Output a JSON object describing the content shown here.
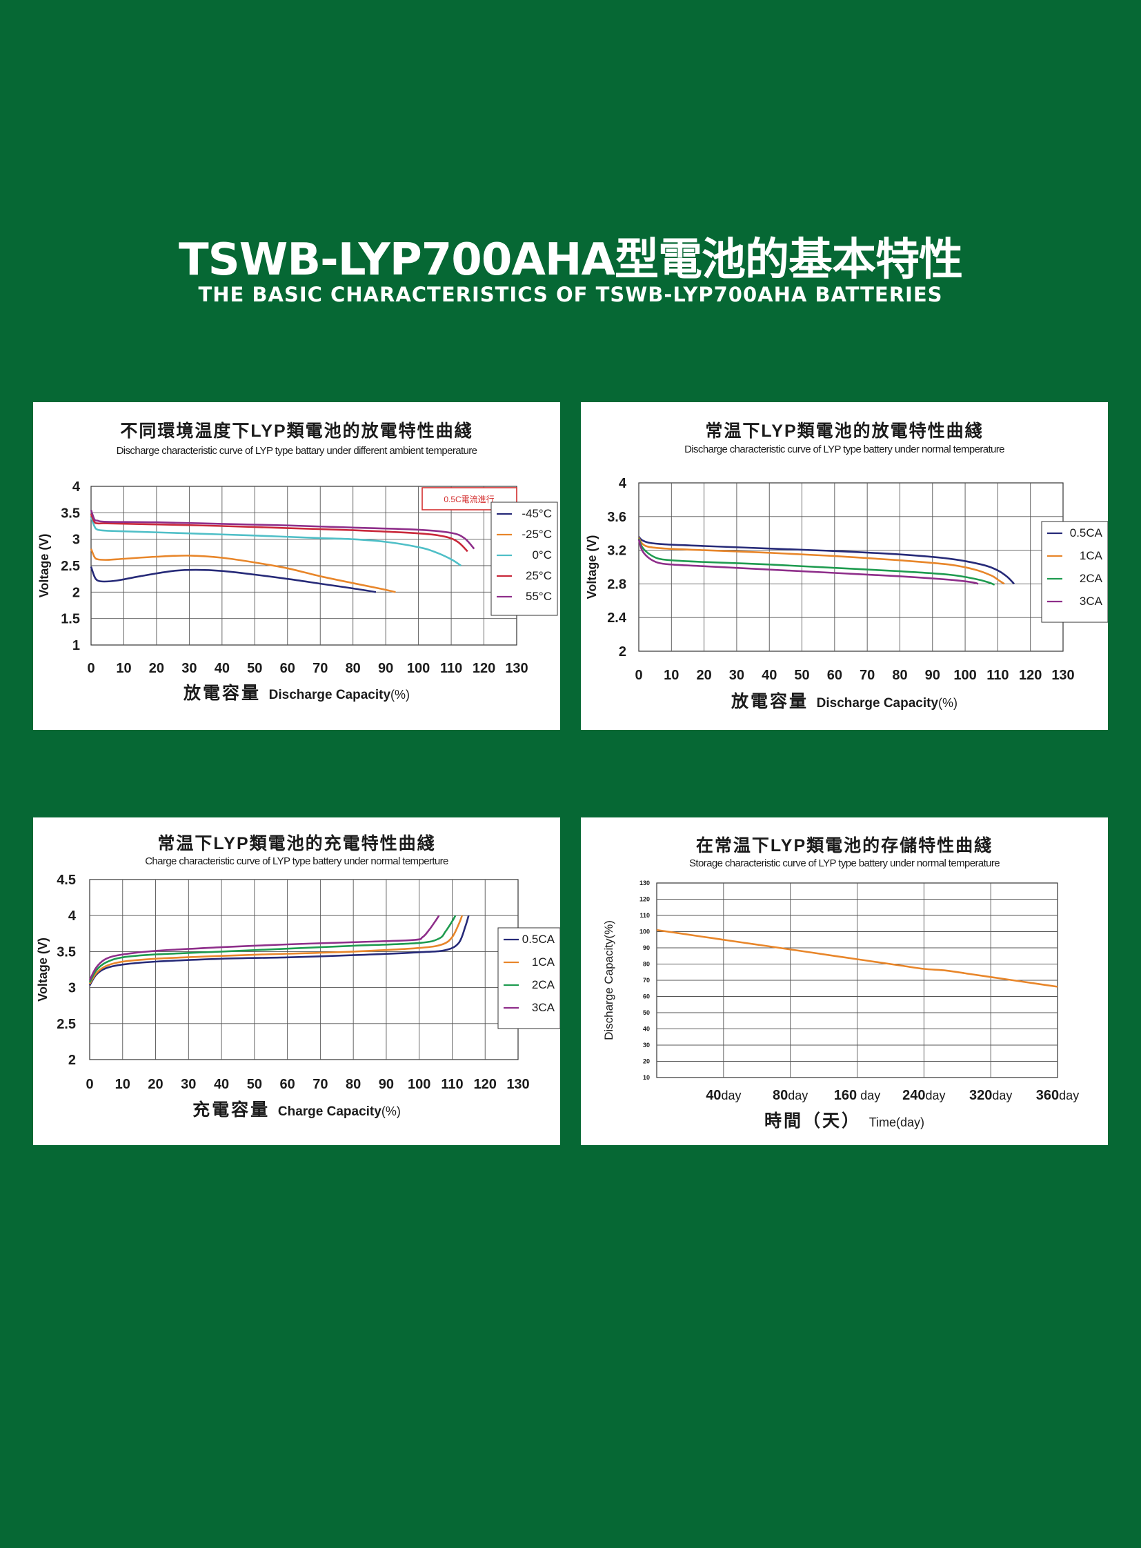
{
  "header": {
    "title": "TSWB-LYP700AHA型電池的基本特性",
    "subtitle": "THE BASIC CHARACTERISTICS OF TSWB-LYP700AHA BATTERIES"
  },
  "colors": {
    "background": "#066834",
    "navy": "#262a78",
    "orange": "#e8862a",
    "teal": "#4fbfc7",
    "red": "#c9283a",
    "purple": "#8e2e8a",
    "green": "#1e9b4f"
  },
  "chart_data": [
    {
      "type": "line",
      "title": "不同環境温度下LYP類電池的放電特性曲綫",
      "subtitle": "Discharge characteristic curve of LYP type battary under different ambient temperature",
      "xlabel_cn": "放電容量",
      "xlabel_en": "Discharge Capacity",
      "xlabel_unit": "(%)",
      "ylabel": "Voltage (V)",
      "xlim": [
        0,
        130
      ],
      "ylim": [
        1,
        4
      ],
      "x_ticks": [
        "0",
        "10",
        "20",
        "30",
        "40",
        "50",
        "60",
        "70",
        "80",
        "90",
        "100",
        "110",
        "120",
        "130"
      ],
      "y_ticks": [
        "1",
        "1.5",
        "2",
        "2.5",
        "3",
        "3.5",
        "4"
      ],
      "annotation": "0.5C電流進行",
      "grid": true,
      "legend_position": "right",
      "series": [
        {
          "name": "-45°C",
          "color": "#262a78",
          "x": [
            0,
            1,
            2,
            4,
            8,
            15,
            25,
            32,
            40,
            50,
            60,
            70,
            80,
            87
          ],
          "y": [
            2.48,
            2.3,
            2.22,
            2.2,
            2.22,
            2.3,
            2.4,
            2.42,
            2.4,
            2.33,
            2.25,
            2.16,
            2.07,
            2.0
          ]
        },
        {
          "name": "-25°C",
          "color": "#e8862a",
          "x": [
            0,
            1,
            2,
            5,
            10,
            20,
            30,
            40,
            50,
            60,
            70,
            80,
            88,
            93
          ],
          "y": [
            2.82,
            2.67,
            2.62,
            2.61,
            2.63,
            2.67,
            2.69,
            2.65,
            2.56,
            2.45,
            2.3,
            2.17,
            2.07,
            2.0
          ]
        },
        {
          "name": "0°C",
          "color": "#4fbfc7",
          "x": [
            0,
            1,
            2,
            5,
            10,
            30,
            50,
            70,
            80,
            90,
            100,
            105,
            110,
            113
          ],
          "y": [
            3.42,
            3.25,
            3.18,
            3.16,
            3.15,
            3.11,
            3.07,
            3.02,
            3.0,
            2.95,
            2.85,
            2.76,
            2.62,
            2.5
          ]
        },
        {
          "name": "25°C",
          "color": "#c9283a",
          "x": [
            0,
            1,
            2,
            5,
            20,
            40,
            60,
            80,
            100,
            108,
            112,
            115
          ],
          "y": [
            3.48,
            3.33,
            3.3,
            3.3,
            3.28,
            3.25,
            3.21,
            3.17,
            3.11,
            3.05,
            2.95,
            2.77
          ]
        },
        {
          "name": "55°C",
          "color": "#8e2e8a",
          "x": [
            0,
            1,
            2,
            5,
            20,
            40,
            60,
            80,
            100,
            110,
            114,
            117
          ],
          "y": [
            3.55,
            3.38,
            3.35,
            3.33,
            3.32,
            3.29,
            3.26,
            3.22,
            3.18,
            3.12,
            3.02,
            2.82
          ]
        }
      ]
    },
    {
      "type": "line",
      "title": "常温下LYP類電池的放電特性曲綫",
      "subtitle": "Discharge characteristic curve of LYP  type battery under normal temperature",
      "xlabel_cn": "放電容量",
      "xlabel_en": "Discharge Capacity",
      "xlabel_unit": "(%)",
      "ylabel": "Voltage (V)",
      "xlim": [
        0,
        130
      ],
      "ylim": [
        2,
        4
      ],
      "x_ticks": [
        "0",
        "10",
        "20",
        "30",
        "40",
        "50",
        "60",
        "70",
        "80",
        "90",
        "100",
        "110",
        "120",
        "130"
      ],
      "y_ticks": [
        "2",
        "2.4",
        "2.8",
        "3.2",
        "3.6",
        "4"
      ],
      "grid": true,
      "legend_position": "right",
      "series": [
        {
          "name": "0.5CA",
          "color": "#262a78",
          "x": [
            0,
            1,
            3,
            8,
            20,
            40,
            60,
            80,
            95,
            105,
            110,
            113,
            115
          ],
          "y": [
            3.36,
            3.32,
            3.29,
            3.27,
            3.25,
            3.22,
            3.19,
            3.15,
            3.1,
            3.03,
            2.96,
            2.88,
            2.8
          ]
        },
        {
          "name": "1CA",
          "color": "#e8862a",
          "x": [
            0,
            1,
            3,
            8,
            20,
            40,
            60,
            80,
            95,
            103,
            108,
            110,
            112
          ],
          "y": [
            3.35,
            3.28,
            3.24,
            3.22,
            3.2,
            3.17,
            3.13,
            3.08,
            3.03,
            2.97,
            2.9,
            2.85,
            2.8
          ]
        },
        {
          "name": "2CA",
          "color": "#1e9b4f",
          "x": [
            0,
            1,
            3,
            6,
            10,
            20,
            40,
            60,
            80,
            95,
            103,
            107,
            109
          ],
          "y": [
            3.34,
            3.24,
            3.16,
            3.1,
            3.08,
            3.06,
            3.03,
            2.99,
            2.95,
            2.91,
            2.86,
            2.82,
            2.79
          ]
        },
        {
          "name": "3CA",
          "color": "#8e2e8a",
          "x": [
            0,
            1,
            3,
            6,
            10,
            20,
            40,
            60,
            80,
            95,
            102,
            104
          ],
          "y": [
            3.33,
            3.2,
            3.11,
            3.05,
            3.03,
            3.01,
            2.97,
            2.93,
            2.89,
            2.85,
            2.82,
            2.8
          ]
        }
      ]
    },
    {
      "type": "line",
      "title": "常温下LYP類電池的充電特性曲綫",
      "subtitle": "Charge characteristic curve of LYP type battery under normal temperture",
      "xlabel_cn": "充電容量",
      "xlabel_en": "Charge Capacity",
      "xlabel_unit": "(%)",
      "ylabel": "Voltage (V)",
      "xlim": [
        0,
        130
      ],
      "ylim": [
        2,
        4.5
      ],
      "x_ticks": [
        "0",
        "10",
        "20",
        "30",
        "40",
        "50",
        "60",
        "70",
        "80",
        "90",
        "100",
        "110",
        "120",
        "130"
      ],
      "y_ticks": [
        "2",
        "2.5",
        "3",
        "3.5",
        "4",
        "4.5"
      ],
      "grid": true,
      "legend_position": "right",
      "series": [
        {
          "name": "0.5CA",
          "color": "#262a78",
          "x": [
            0,
            2,
            5,
            10,
            20,
            40,
            60,
            80,
            100,
            108,
            112,
            114,
            115
          ],
          "y": [
            3.03,
            3.18,
            3.27,
            3.32,
            3.36,
            3.4,
            3.42,
            3.45,
            3.49,
            3.52,
            3.62,
            3.85,
            4.0
          ]
        },
        {
          "name": "1CA",
          "color": "#e8862a",
          "x": [
            0,
            2,
            5,
            10,
            20,
            40,
            60,
            80,
            100,
            107,
            110,
            112,
            113
          ],
          "y": [
            3.05,
            3.2,
            3.3,
            3.36,
            3.4,
            3.44,
            3.47,
            3.5,
            3.55,
            3.6,
            3.7,
            3.88,
            4.0
          ]
        },
        {
          "name": "2CA",
          "color": "#1e9b4f",
          "x": [
            0,
            2,
            5,
            10,
            20,
            40,
            60,
            80,
            100,
            106,
            108,
            110,
            111
          ],
          "y": [
            3.07,
            3.24,
            3.35,
            3.42,
            3.46,
            3.5,
            3.54,
            3.58,
            3.62,
            3.68,
            3.78,
            3.92,
            4.0
          ]
        },
        {
          "name": "3CA",
          "color": "#8e2e8a",
          "x": [
            0,
            2,
            5,
            10,
            20,
            40,
            60,
            80,
            98,
            101,
            103,
            105,
            106
          ],
          "y": [
            3.1,
            3.28,
            3.4,
            3.46,
            3.51,
            3.56,
            3.6,
            3.63,
            3.66,
            3.7,
            3.8,
            3.93,
            4.0
          ]
        }
      ]
    },
    {
      "type": "line",
      "title": "在常温下LYP類電池的存儲特性曲綫",
      "subtitle": "Storage characteristic curve of LYP type battery under normal temperature",
      "xlabel_cn": "時間（天）",
      "xlabel_en": "Time(day)",
      "ylabel": "Discharge Capacity(%)",
      "xlim": [
        0,
        360
      ],
      "ylim": [
        10,
        130
      ],
      "x_ticks": [
        "40day",
        "80day",
        "160 day",
        "240day",
        "320day",
        "360day"
      ],
      "y_ticks": [
        "10",
        "20",
        "30",
        "40",
        "50",
        "60",
        "70",
        "80",
        "90",
        "100",
        "110",
        "120",
        "130"
      ],
      "grid": true,
      "series": [
        {
          "name": "",
          "color": "#e8862a",
          "x": [
            0,
            20,
            40,
            60,
            80,
            100,
            120,
            140,
            160,
            180,
            200,
            220,
            240,
            260,
            280,
            300,
            320,
            340,
            360
          ],
          "y": [
            101,
            99,
            97,
            95,
            93,
            91,
            89,
            87,
            85,
            83,
            81,
            79,
            77,
            76,
            74,
            72,
            70,
            68,
            66
          ]
        }
      ]
    }
  ]
}
